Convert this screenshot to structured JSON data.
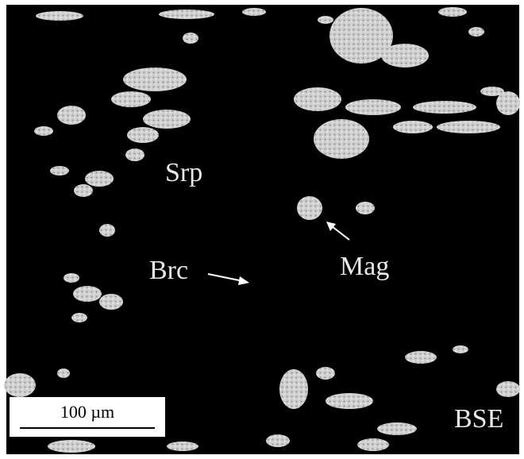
{
  "labels": {
    "srp": "Srp",
    "brc": "Brc",
    "mag": "Mag",
    "mode": "BSE"
  },
  "scale_bar": {
    "label": "100 µm"
  }
}
